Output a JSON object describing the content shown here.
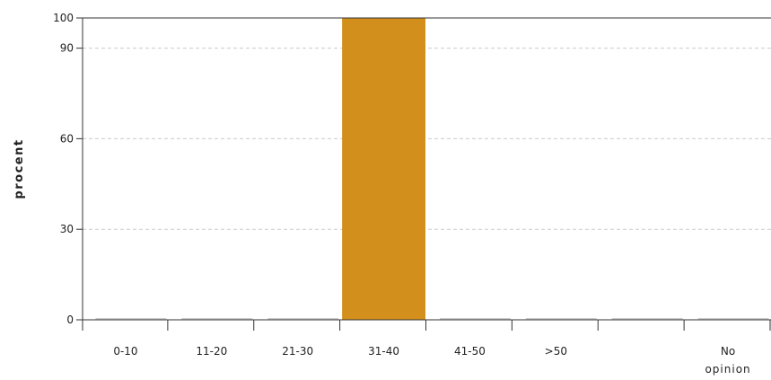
{
  "chart_data": {
    "type": "bar",
    "title": "",
    "xlabel": "",
    "ylabel": "procent",
    "ylim": [
      0,
      100
    ],
    "yticks": [
      0,
      30,
      60,
      90,
      100
    ],
    "grid": true,
    "categories": [
      "0-10",
      "11-20",
      "21-30",
      "31-40",
      "41-50",
      ">50",
      "",
      "No opinion"
    ],
    "values": [
      0,
      0,
      0,
      100,
      0,
      0,
      0,
      0
    ],
    "colors": {
      "bar": "#d28f1c",
      "baseline_bar": "#cccccc",
      "grid": "#cccccc",
      "axis": "#333333"
    }
  }
}
